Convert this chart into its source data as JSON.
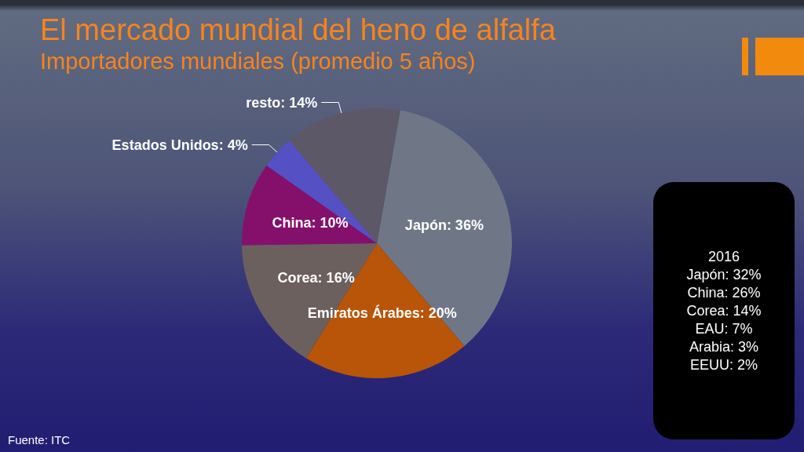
{
  "chart_data": [
    {
      "type": "pie",
      "title": "El mercado mundial del heno de alfalfa",
      "subtitle": "Importadores mundiales (promedio 5 años)",
      "categories": [
        "Japón",
        "Emiratos Árabes",
        "Corea",
        "China",
        "Estados Unidos",
        "resto"
      ],
      "values": [
        36,
        20,
        16,
        10,
        4,
        14
      ],
      "colors": [
        "#6f7787",
        "#b85508",
        "#6c605e",
        "#85106c",
        "#5550c4",
        "#5c5868"
      ],
      "value_labels": [
        "36%",
        "20%",
        "16%",
        "10%",
        "4%",
        "14%"
      ],
      "annotations": [
        "Fuente: ITC"
      ]
    },
    {
      "type": "other",
      "title": "2016",
      "annotations": [
        "Japón: 32%",
        "China: 26%",
        "Corea: 14%",
        "EAU: 7%",
        "Arabia: 3%",
        "EEUU: 2%"
      ]
    }
  ]
}
